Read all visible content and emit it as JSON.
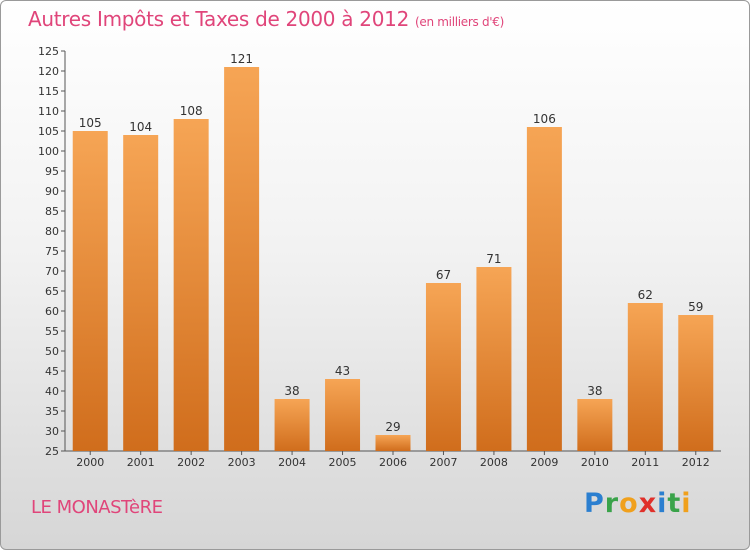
{
  "chart_data": {
    "type": "bar",
    "title": "Autres Impôts et Taxes de 2000 à 2012",
    "subtitle": "(en milliers d'€)",
    "categories": [
      "2000",
      "2001",
      "2002",
      "2003",
      "2004",
      "2005",
      "2006",
      "2007",
      "2008",
      "2009",
      "2010",
      "2011",
      "2012"
    ],
    "values": [
      105,
      104,
      108,
      121,
      38,
      43,
      29,
      67,
      71,
      106,
      38,
      62,
      59
    ],
    "ylim": [
      25,
      125
    ],
    "yticks": [
      25,
      30,
      35,
      40,
      45,
      50,
      55,
      60,
      65,
      70,
      75,
      80,
      85,
      90,
      95,
      100,
      105,
      110,
      115,
      120,
      125
    ],
    "grid": false,
    "bar_color_top": "#f6a555",
    "bar_color_bottom": "#d06d1c"
  },
  "footer": {
    "commune": "LE MONASTèRE",
    "logo_letters": [
      {
        "ch": "P",
        "color": "#2b7fd0"
      },
      {
        "ch": "r",
        "color": "#3aa34a"
      },
      {
        "ch": "o",
        "color": "#f0a01c"
      },
      {
        "ch": "x",
        "color": "#e0302a"
      },
      {
        "ch": "i",
        "color": "#2b7fd0"
      },
      {
        "ch": "t",
        "color": "#3aa34a"
      },
      {
        "ch": "i",
        "color": "#f0a01c"
      }
    ]
  },
  "colors": {
    "accent": "#e0457a"
  }
}
